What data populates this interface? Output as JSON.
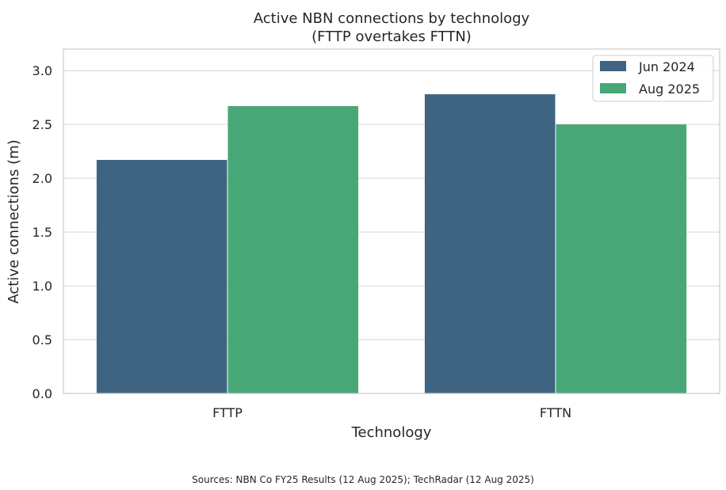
{
  "chart_data": {
    "type": "bar",
    "title": "Active NBN connections by technology",
    "subtitle": "(FTTP overtakes FTTN)",
    "xlabel": "Technology",
    "ylabel": "Active connections (m)",
    "categories": [
      "FTTP",
      "FTTN"
    ],
    "series": [
      {
        "name": "Jun 2024",
        "values": [
          2.17,
          2.78
        ],
        "color": "#3e6482"
      },
      {
        "name": "Aug 2025",
        "values": [
          2.67,
          2.5
        ],
        "color": "#47a776"
      }
    ],
    "ylim": [
      0,
      3.2
    ],
    "yticks": [
      "0.0",
      "0.5",
      "1.0",
      "1.5",
      "2.0",
      "2.5",
      "3.0"
    ],
    "ytick_values": [
      0,
      0.5,
      1.0,
      1.5,
      2.0,
      2.5,
      3.0
    ],
    "grid": true,
    "legend_position": "top-right",
    "footnote": "Sources: NBN Co FY25 Results (12 Aug 2025); TechRadar (12 Aug 2025)"
  }
}
